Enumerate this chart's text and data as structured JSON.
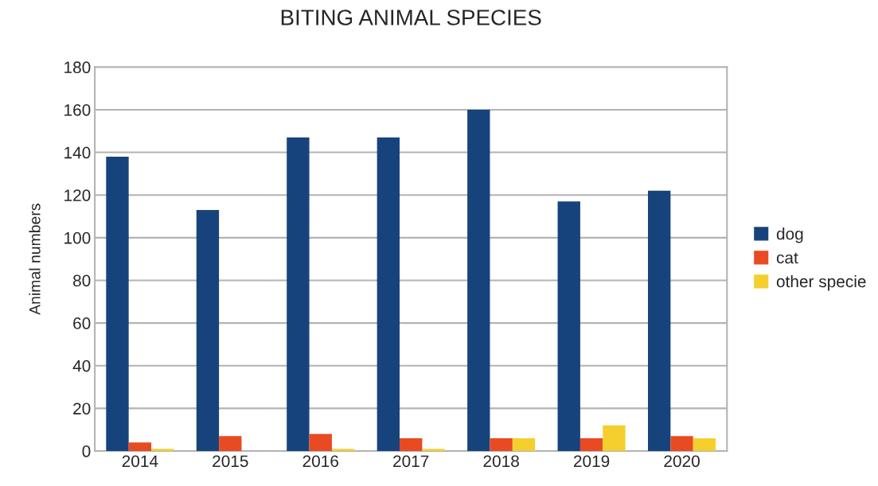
{
  "chart_data": {
    "type": "bar",
    "title": "BITING ANIMAL SPECIES",
    "ylabel": "Animal numbers",
    "categories": [
      "2014",
      "2015",
      "2016",
      "2017",
      "2018",
      "2019",
      "2020"
    ],
    "series": [
      {
        "name": "dog",
        "color": "#17437d",
        "values": [
          138,
          113,
          147,
          147,
          160,
          117,
          122
        ]
      },
      {
        "name": "cat",
        "color": "#e84a22",
        "values": [
          4,
          7,
          8,
          6,
          6,
          6,
          7
        ]
      },
      {
        "name": "other specie",
        "color": "#f5cf2e",
        "values": [
          1,
          0,
          1,
          1,
          6,
          12,
          6
        ]
      }
    ],
    "ylim": [
      0,
      180
    ],
    "yticks": [
      0,
      20,
      40,
      60,
      80,
      100,
      120,
      140,
      160,
      180
    ],
    "grid": "y",
    "legend": "right"
  }
}
